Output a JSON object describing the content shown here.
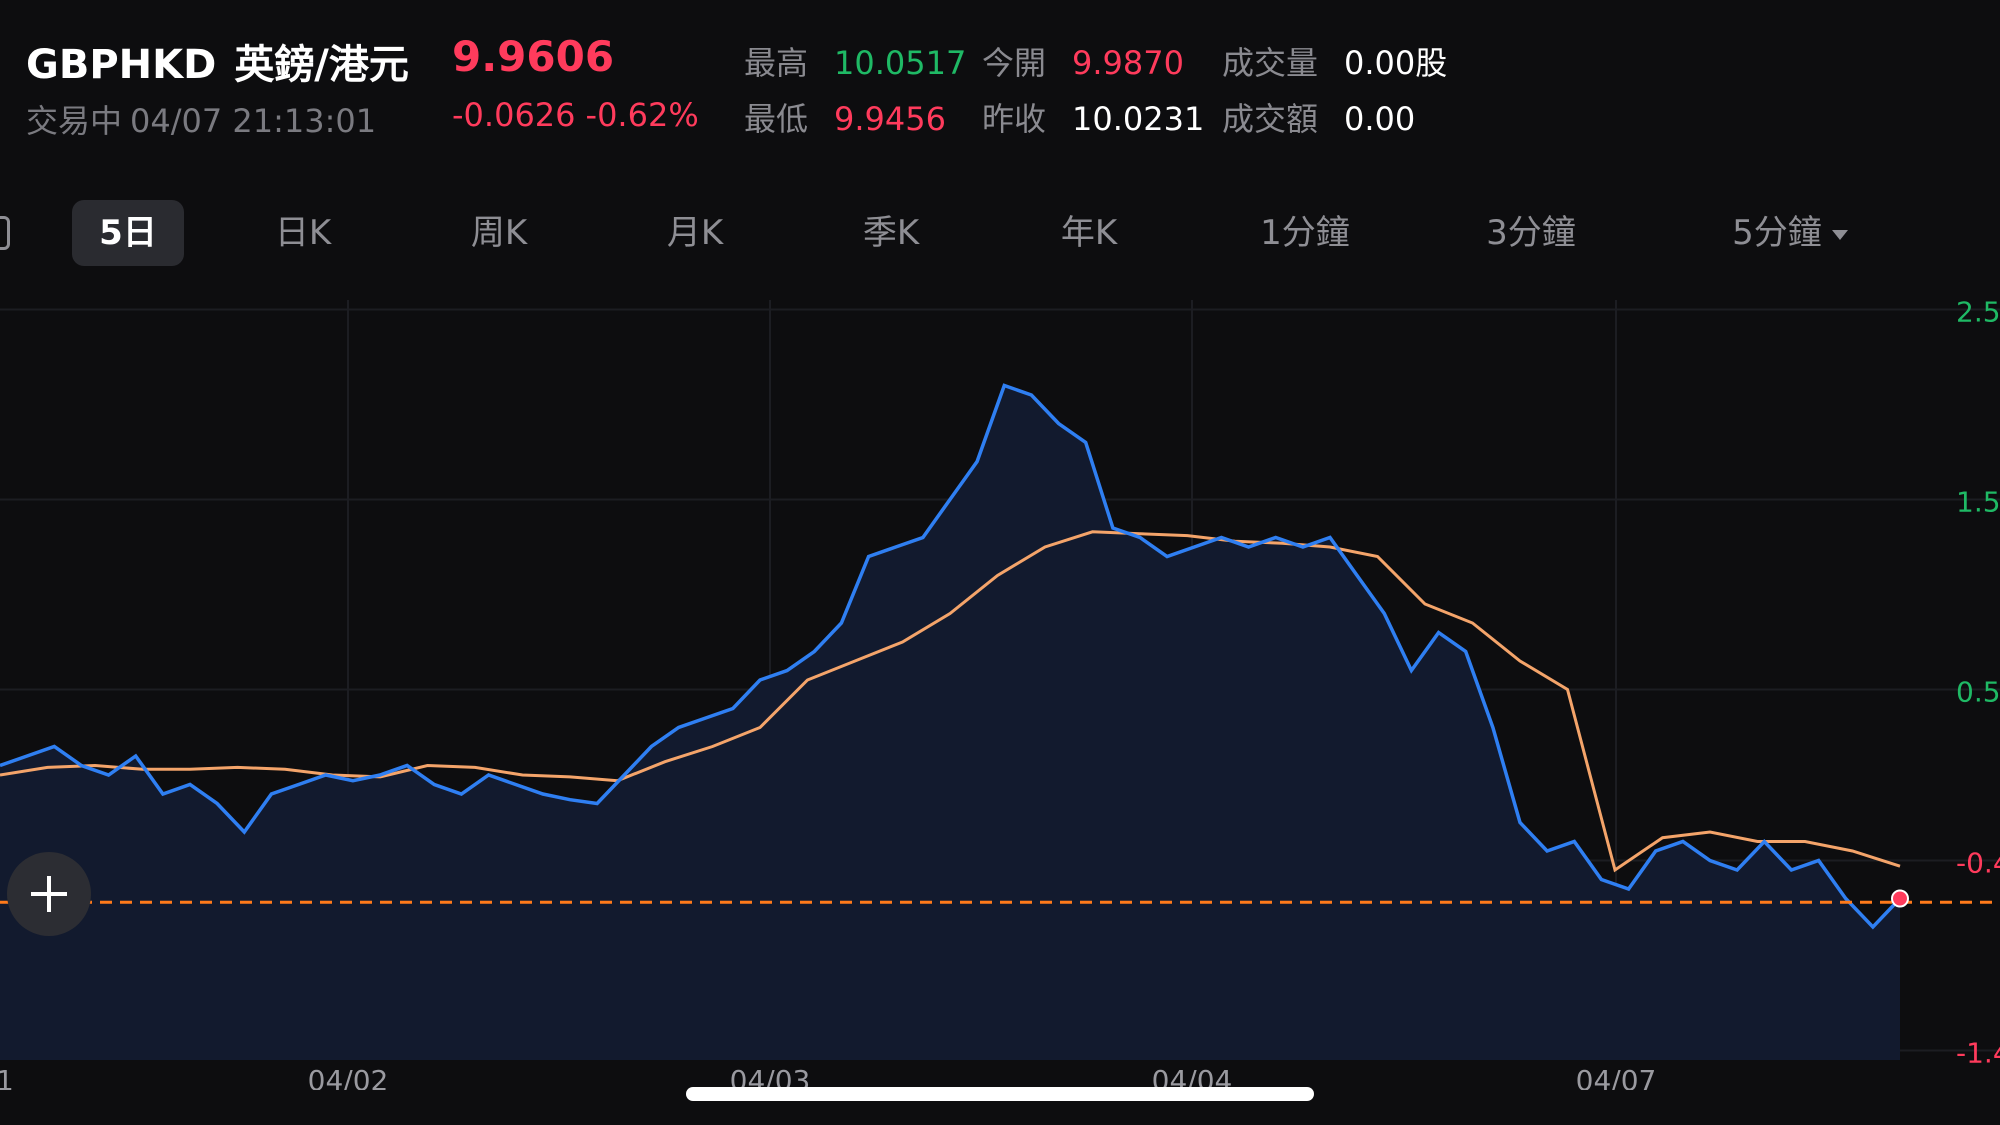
{
  "header": {
    "symbol": "GBPHKD",
    "name": "英鎊/港元",
    "price": "9.9606",
    "status": "交易中",
    "timestamp": "04/07 21:13:01",
    "change": "-0.0626",
    "change_pct": "-0.62%"
  },
  "stats": {
    "high_label": "最高",
    "high": "10.0517",
    "open_label": "今開",
    "open": "9.9870",
    "volume_label": "成交量",
    "volume": "0.00股",
    "low_label": "最低",
    "low": "9.9456",
    "prev_close_label": "昨收",
    "prev_close": "10.0231",
    "turnover_label": "成交額",
    "turnover": "0.00"
  },
  "tabs": [
    {
      "label": "5日",
      "active": true
    },
    {
      "label": "日K"
    },
    {
      "label": "周K"
    },
    {
      "label": "月K"
    },
    {
      "label": "季K"
    },
    {
      "label": "年K"
    },
    {
      "label": "1分鐘"
    },
    {
      "label": "3分鐘"
    },
    {
      "label": "5分鐘"
    }
  ],
  "colors": {
    "up": "#1fb965",
    "down": "#ff3b5c",
    "price_line": "#2f7ff2",
    "average_line": "#f4a46a",
    "reference_line": "#ff7a1a"
  },
  "chart_data": {
    "type": "line",
    "y_axis": "percent change vs previous close",
    "y_tick_labels": [
      "2.5",
      "1.5",
      "0.5",
      "-0.4",
      "-1.4"
    ],
    "ylim": [
      -1.45,
      2.55
    ],
    "x_tick_labels": [
      "1",
      "04/02",
      "04/03",
      "04/04",
      "04/07"
    ],
    "reference_value": -0.62,
    "grid": true,
    "series": [
      {
        "values": [
          0.1,
          0.15,
          0.2,
          0.1,
          0.05,
          0.15,
          -0.05,
          0.0,
          -0.1,
          -0.25,
          -0.05,
          0.0,
          0.05,
          0.02,
          0.05,
          0.1,
          0.0,
          -0.05,
          0.05,
          0.0,
          -0.05,
          -0.08,
          -0.1,
          0.05,
          0.2,
          0.3,
          0.35,
          0.4,
          0.55,
          0.6,
          0.7,
          0.85,
          1.2,
          1.25,
          1.3,
          1.5,
          1.7,
          2.1,
          2.05,
          1.9,
          1.8,
          1.35,
          1.3,
          1.2,
          1.25,
          1.3,
          1.25,
          1.3,
          1.25,
          1.3,
          1.1,
          0.9,
          0.6,
          0.8,
          0.7,
          0.3,
          -0.2,
          -0.35,
          -0.3,
          -0.5,
          -0.55,
          -0.35,
          -0.3,
          -0.4,
          -0.45,
          -0.3,
          -0.45,
          -0.4,
          -0.6,
          -0.75,
          -0.6
        ]
      },
      {
        "values": [
          0.05,
          0.09,
          0.1,
          0.08,
          0.08,
          0.09,
          0.08,
          0.05,
          0.04,
          0.1,
          0.09,
          0.05,
          0.04,
          0.02,
          0.12,
          0.2,
          0.3,
          0.55,
          0.65,
          0.75,
          0.9,
          1.1,
          1.25,
          1.33,
          1.32,
          1.31,
          1.28,
          1.27,
          1.25,
          1.2,
          0.95,
          0.85,
          0.65,
          0.5,
          -0.45,
          -0.28,
          -0.25,
          -0.3,
          -0.3,
          -0.35,
          -0.43
        ]
      }
    ]
  }
}
